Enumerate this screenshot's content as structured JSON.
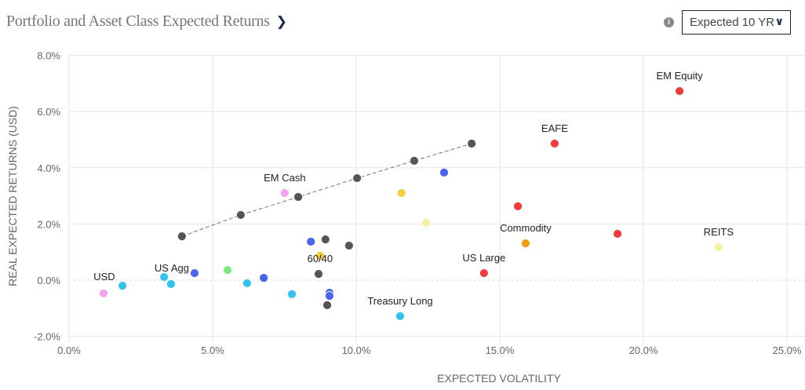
{
  "header": {
    "title": "Portfolio and Asset Class Expected Returns",
    "title_icon": "chevron-right-icon",
    "info_icon": "info-icon",
    "horizon_select": "Expected 10 YR"
  },
  "colors": {
    "red": "#f03c3c",
    "gray": "#555555",
    "cyan": "#33c3f0",
    "blue": "#4a62f0",
    "pink": "#f5a0f0",
    "green": "#7de87d",
    "yellow": "#f5cf3c",
    "lightyellow": "#f5f0a0",
    "orange": "#f59a10"
  },
  "chart_data": {
    "type": "scatter",
    "xlabel": "EXPECTED VOLATILITY",
    "ylabel": "REAL EXPECTED RETURNS (USD)",
    "xlim": [
      0,
      25.6
    ],
    "ylim": [
      -2,
      8
    ],
    "xticks": [
      "0.0%",
      "5.0%",
      "10.0%",
      "15.0%",
      "20.0%",
      "25.0%"
    ],
    "yticks": [
      "-2.0%",
      "0.0%",
      "2.0%",
      "4.0%",
      "6.0%",
      "8.0%"
    ],
    "grid": true,
    "frontier": [
      [
        3.93,
        1.56
      ],
      [
        5.98,
        2.32
      ],
      [
        7.98,
        2.96
      ],
      [
        10.03,
        3.63
      ],
      [
        12.02,
        4.25
      ],
      [
        14.02,
        4.86
      ]
    ],
    "points": [
      {
        "x": 21.26,
        "y": 6.73,
        "color": "red",
        "label": "EM Equity"
      },
      {
        "x": 16.91,
        "y": 4.86,
        "color": "red",
        "label": "EAFE"
      },
      {
        "x": 15.63,
        "y": 2.63,
        "color": "red"
      },
      {
        "x": 19.1,
        "y": 1.65,
        "color": "red"
      },
      {
        "x": 14.45,
        "y": 0.25,
        "color": "red",
        "label": "US Large"
      },
      {
        "x": 15.9,
        "y": 1.31,
        "color": "orange",
        "label": "Commodity"
      },
      {
        "x": 22.62,
        "y": 1.17,
        "color": "lightyellow",
        "label": "REITS"
      },
      {
        "x": 12.43,
        "y": 2.04,
        "color": "lightyellow"
      },
      {
        "x": 11.58,
        "y": 3.1,
        "color": "yellow"
      },
      {
        "x": 8.74,
        "y": 0.87,
        "color": "yellow",
        "label": "60/40"
      },
      {
        "x": 13.06,
        "y": 3.83,
        "color": "blue"
      },
      {
        "x": 7.51,
        "y": 3.1,
        "color": "pink",
        "label": "EM Cash"
      },
      {
        "x": 1.2,
        "y": -0.47,
        "color": "pink",
        "label": "USD"
      },
      {
        "x": 1.86,
        "y": -0.2,
        "color": "cyan"
      },
      {
        "x": 3.31,
        "y": 0.11,
        "color": "cyan"
      },
      {
        "x": 3.55,
        "y": -0.14,
        "color": "cyan"
      },
      {
        "x": 4.37,
        "y": 0.25,
        "color": "blue",
        "label": "US Agg"
      },
      {
        "x": 5.52,
        "y": 0.36,
        "color": "green"
      },
      {
        "x": 6.2,
        "y": -0.11,
        "color": "cyan"
      },
      {
        "x": 6.78,
        "y": 0.08,
        "color": "blue"
      },
      {
        "x": 7.76,
        "y": -0.5,
        "color": "cyan"
      },
      {
        "x": 8.42,
        "y": 1.37,
        "color": "blue"
      },
      {
        "x": 8.93,
        "y": 1.45,
        "color": "gray"
      },
      {
        "x": 9.75,
        "y": 1.23,
        "color": "gray"
      },
      {
        "x": 8.69,
        "y": 0.22,
        "color": "gray"
      },
      {
        "x": 9.07,
        "y": -0.45,
        "color": "blue"
      },
      {
        "x": 9.07,
        "y": -0.56,
        "color": "blue"
      },
      {
        "x": 8.99,
        "y": -0.89,
        "color": "gray"
      },
      {
        "x": 11.53,
        "y": -1.28,
        "color": "cyan",
        "label": "Treasury Long"
      }
    ]
  }
}
